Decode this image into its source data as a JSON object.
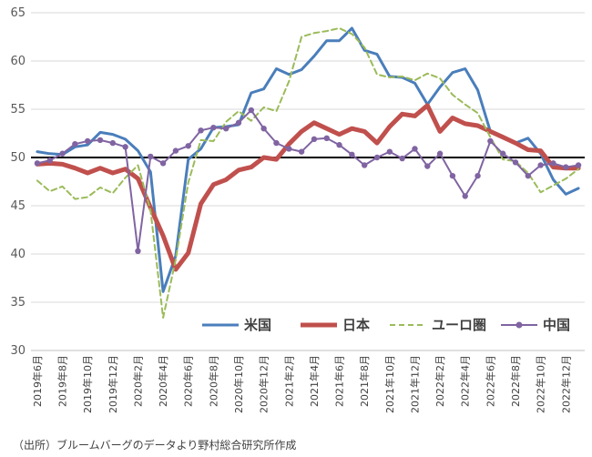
{
  "chart_data": {
    "type": "line",
    "title": "",
    "xlabel": "",
    "ylabel": "",
    "ylim": [
      30,
      65
    ],
    "yticks": [
      30,
      35,
      40,
      45,
      50,
      55,
      60,
      65
    ],
    "reference_line": 50,
    "grid": "horizontal",
    "legend_position": "bottom-right",
    "x_labels": [
      "2019年6月",
      "2019年8月",
      "2019年10月",
      "2019年12月",
      "2020年2月",
      "2020年4月",
      "2020年6月",
      "2020年8月",
      "2020年10月",
      "2020年12月",
      "2021年2月",
      "2021年4月",
      "2021年6月",
      "2021年8月",
      "2021年10月",
      "2021年12月",
      "2022年2月",
      "2022年4月",
      "2022年6月",
      "2022年8月",
      "2022年10月",
      "2022年12月"
    ],
    "x_months": [
      "2019-06",
      "2019-07",
      "2019-08",
      "2019-09",
      "2019-10",
      "2019-11",
      "2019-12",
      "2020-01",
      "2020-02",
      "2020-03",
      "2020-04",
      "2020-05",
      "2020-06",
      "2020-07",
      "2020-08",
      "2020-09",
      "2020-10",
      "2020-11",
      "2020-12",
      "2021-01",
      "2021-02",
      "2021-03",
      "2021-04",
      "2021-05",
      "2021-06",
      "2021-07",
      "2021-08",
      "2021-09",
      "2021-10",
      "2021-11",
      "2021-12",
      "2022-01",
      "2022-02",
      "2022-03",
      "2022-04",
      "2022-05",
      "2022-06",
      "2022-07",
      "2022-08",
      "2022-09",
      "2022-10",
      "2022-11",
      "2022-12",
      "2023-01"
    ],
    "series": [
      {
        "name": "米国",
        "color": "#4a7ebb",
        "style": "solid",
        "values": [
          50.6,
          50.4,
          50.3,
          51.1,
          51.3,
          52.6,
          52.4,
          51.9,
          50.7,
          48.5,
          36.1,
          39.8,
          49.8,
          50.9,
          53.1,
          53.2,
          53.4,
          56.7,
          57.1,
          59.2,
          58.6,
          59.1,
          60.5,
          62.1,
          62.1,
          63.4,
          61.1,
          60.7,
          58.4,
          58.3,
          57.7,
          55.5,
          57.3,
          58.8,
          59.2,
          57.0,
          52.7,
          52.2,
          51.5,
          52.0,
          50.4,
          47.7,
          46.2,
          46.8
        ]
      },
      {
        "name": "日本",
        "color": "#c0504d",
        "style": "solid",
        "values": [
          49.3,
          49.4,
          49.3,
          48.9,
          48.4,
          48.9,
          48.4,
          48.8,
          47.8,
          44.8,
          41.9,
          38.4,
          40.1,
          45.2,
          47.2,
          47.7,
          48.7,
          49.0,
          50.0,
          49.8,
          51.4,
          52.7,
          53.6,
          53.0,
          52.4,
          53.0,
          52.7,
          51.5,
          53.2,
          54.5,
          54.3,
          55.4,
          52.7,
          54.1,
          53.5,
          53.3,
          52.7,
          52.1,
          51.5,
          50.8,
          50.7,
          49.0,
          48.9,
          48.9
        ]
      },
      {
        "name": "ユーロ圏",
        "color": "#9bbb59",
        "style": "dashed",
        "values": [
          47.6,
          46.5,
          47.0,
          45.7,
          45.9,
          46.9,
          46.3,
          47.9,
          49.2,
          44.5,
          33.4,
          39.4,
          47.4,
          51.8,
          51.7,
          53.7,
          54.8,
          53.8,
          55.2,
          54.8,
          57.9,
          62.5,
          62.9,
          63.1,
          63.4,
          62.8,
          61.4,
          58.6,
          58.3,
          58.4,
          58.0,
          58.7,
          58.2,
          56.5,
          55.5,
          54.6,
          52.1,
          49.8,
          49.6,
          48.4,
          46.4,
          47.1,
          47.8,
          48.8
        ]
      },
      {
        "name": "中国",
        "color": "#8064a2",
        "style": "solid-markers",
        "values": [
          49.4,
          49.7,
          50.4,
          51.4,
          51.7,
          51.8,
          51.5,
          51.1,
          40.3,
          50.1,
          49.4,
          50.7,
          51.2,
          52.8,
          53.1,
          53.0,
          53.6,
          54.9,
          53.0,
          51.5,
          50.9,
          50.6,
          51.9,
          52.0,
          51.3,
          50.3,
          49.2,
          50.0,
          50.6,
          49.9,
          50.9,
          49.1,
          50.4,
          48.1,
          46.0,
          48.1,
          51.7,
          50.4,
          49.5,
          48.1,
          49.2,
          49.4,
          49.0,
          49.2
        ]
      }
    ]
  },
  "source_note": "（出所）ブルームバーグのデータより野村総合研究所作成"
}
